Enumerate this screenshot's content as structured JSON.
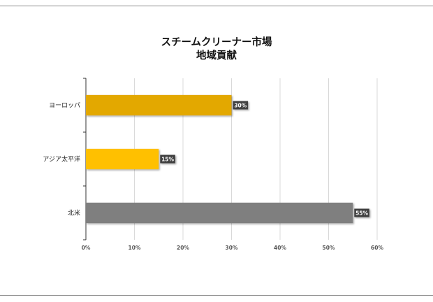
{
  "chart_data": {
    "type": "bar",
    "orientation": "horizontal",
    "title": "スチームクリーナー市場",
    "subtitle": "地域貢献",
    "categories": [
      "ヨーロッパ",
      "アジア太平洋",
      "北米"
    ],
    "values": [
      30,
      15,
      55
    ],
    "data_labels": [
      "30%",
      "15%",
      "55%"
    ],
    "colors": [
      "#e3a800",
      "#ffc000",
      "#7f7f7f"
    ],
    "xlim": [
      0,
      60
    ],
    "xticks": [
      0,
      10,
      20,
      30,
      40,
      50,
      60
    ],
    "xtick_labels": [
      "0%",
      "10%",
      "20%",
      "30%",
      "40%",
      "50%",
      "60%"
    ],
    "grid": true,
    "legend": "none",
    "xlabel": "",
    "ylabel": ""
  }
}
